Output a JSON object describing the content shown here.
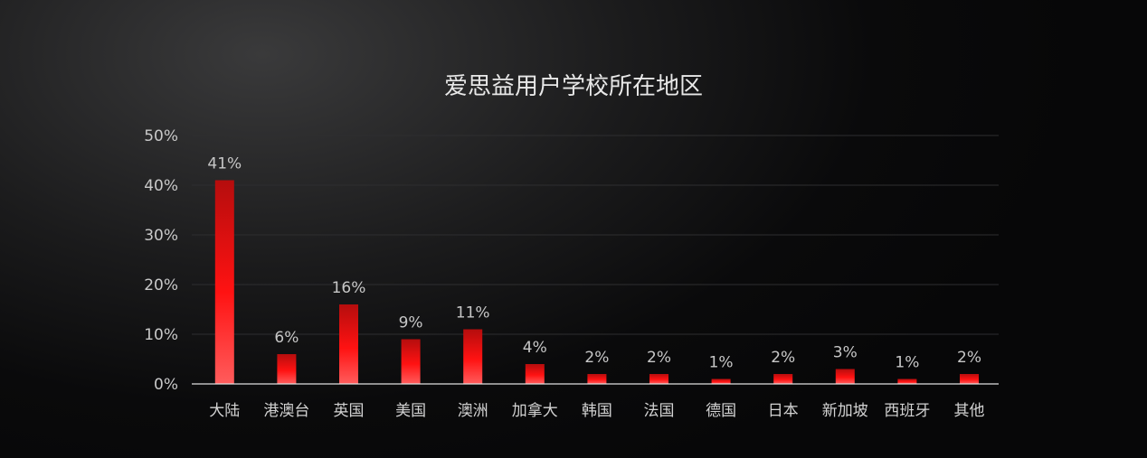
{
  "chart_data": {
    "type": "bar",
    "title": "爱思益用户学校所在地区",
    "xlabel": "",
    "ylabel": "",
    "ylim": [
      0,
      50
    ],
    "ytick_values": [
      0,
      10,
      20,
      30,
      40,
      50
    ],
    "ytick_labels": [
      "0%",
      "10%",
      "20%",
      "30%",
      "40%",
      "50%"
    ],
    "categories": [
      "大陆",
      "港澳台",
      "英国",
      "美国",
      "澳洲",
      "加拿大",
      "韩国",
      "法国",
      "德国",
      "日本",
      "新加坡",
      "西班牙",
      "其他"
    ],
    "values": [
      41,
      6,
      16,
      9,
      11,
      4,
      2,
      2,
      1,
      2,
      3,
      1,
      2
    ],
    "data_labels": [
      "41%",
      "6%",
      "16%",
      "9%",
      "11%",
      "4%",
      "2%",
      "2%",
      "1%",
      "2%",
      "3%",
      "1%",
      "2%"
    ],
    "grid": true,
    "legend": "none",
    "colors": {
      "bar_top": "#b50d0d",
      "bar_mid": "#ff1212",
      "bar_bottom": "#ff5c5c",
      "grid": "#2e2e30",
      "baseline": "#e0e0e0"
    }
  }
}
